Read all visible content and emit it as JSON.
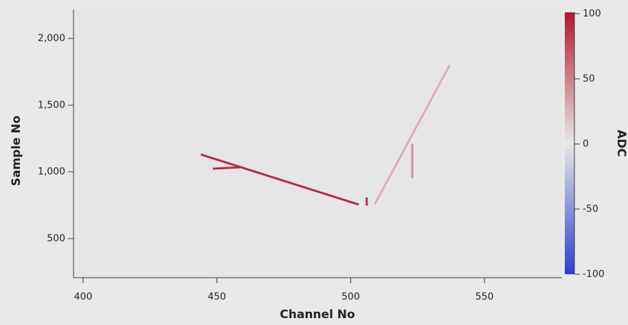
{
  "chart_data": {
    "type": "line",
    "x_label": "Channel No",
    "y_label": "Sample No",
    "colorbar_label": "ADC",
    "xlim": [
      396.4,
      579
    ],
    "xticks": [
      400,
      450,
      500,
      550
    ],
    "ylim": [
      207,
      2216
    ],
    "yticks": [
      {
        "value": 2000,
        "label": "2,000"
      },
      {
        "value": 1500,
        "label": "1,500"
      },
      {
        "value": 1000,
        "label": "1,000"
      },
      500
    ],
    "zlim": [
      -100,
      100
    ],
    "zticks": [
      100,
      50,
      0,
      -50,
      -100
    ],
    "series": [
      {
        "color": "#b8283c",
        "x": [
          444,
          503
        ],
        "values": [
          1130,
          755
        ]
      },
      {
        "color": "#b8283c",
        "x": [
          448.5,
          458.6
        ],
        "values": [
          1024,
          1034
        ]
      },
      {
        "color": "#e3a9b1",
        "x": [
          509,
          537
        ],
        "values": [
          757,
          1800
        ]
      },
      {
        "color": "#d68a96",
        "x": [
          523,
          523
        ],
        "values": [
          1210,
          952
        ]
      },
      {
        "color": "#c0283c",
        "x": [
          506,
          506
        ],
        "values": [
          808,
          747
        ]
      }
    ]
  }
}
